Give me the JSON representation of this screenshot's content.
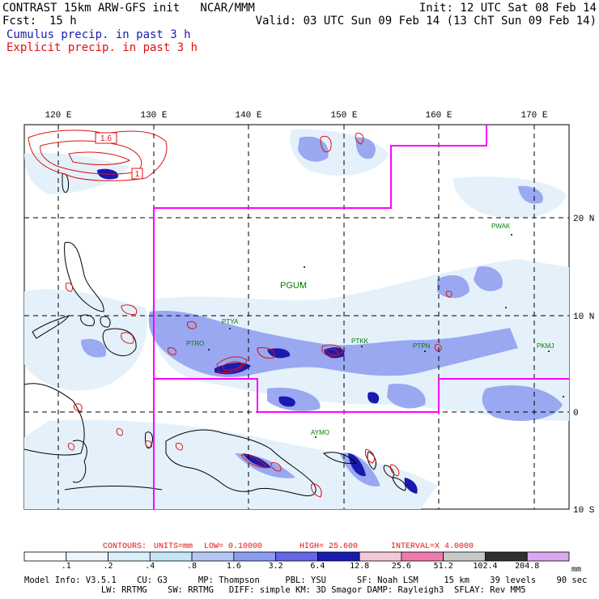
{
  "header": {
    "line1_left": "CONTRAST 15km ARW-GFS init   NCAR/MMM",
    "line1_right": "Init: 12 UTC Sat 08 Feb 14",
    "line2_left_label": "Fcst:",
    "line2_left_value": "15 h",
    "line2_right": "Valid: 03 UTC Sun 09 Feb 14 (13 ChT Sun 09 Feb 14)",
    "cumulus_label": "Cumulus precip. in past 3 h",
    "explicit_label": "Explicit precip. in past 3 h"
  },
  "colors": {
    "cumulus": "#1a1ab0",
    "explicit": "#e01010",
    "magenta_box": "#ff00ff",
    "station": "#008000",
    "contour": "#e01010"
  },
  "map": {
    "lon_labels": [
      "120 E",
      "130 E",
      "140 E",
      "150 E",
      "160 E",
      "170 E"
    ],
    "lat_labels": [
      "20 N",
      "10 N",
      "0",
      "10 S"
    ],
    "stations": [
      {
        "id": "PWAK",
        "name": "PWAK"
      },
      {
        "id": "PGUM",
        "name": "PGUM"
      },
      {
        "id": "PTYA",
        "name": "PTYA"
      },
      {
        "id": "PTRO",
        "name": "PTRO"
      },
      {
        "id": "PTKK",
        "name": "PTKK"
      },
      {
        "id": "PTPN",
        "name": "PTPN"
      },
      {
        "id": "PKMJ",
        "name": "PKMJ"
      },
      {
        "id": "AYMO",
        "name": "AYMO"
      }
    ],
    "contour_labels": [
      "1.6",
      "1"
    ]
  },
  "contours_info": {
    "contours": "CONTOURS:",
    "units": "UNITS=mm",
    "low": "LOW=  0.10000",
    "high": "HIGH=  25.600",
    "interval": "INTERVAL=X  4.0000"
  },
  "colorbar": {
    "unit": "mm",
    "labels": [
      ".1",
      ".2",
      ".4",
      ".8",
      "1.6",
      "3.2",
      "6.4",
      "12.8",
      "25.6",
      "51.2",
      "102.4",
      "204.8"
    ],
    "colors": [
      "#ffffff",
      "#eef6fc",
      "#d9eefa",
      "#c6e6f8",
      "#b5c8f4",
      "#8c9cf0",
      "#6666e8",
      "#1a1ab0",
      "#f4c8d6",
      "#f07ab0",
      "#c8c8c8",
      "#303030",
      "#d8a8f0"
    ]
  },
  "footer": {
    "line1": "Model Info: V3.5.1    CU: G3      MP: Thompson     PBL: YSU      SF: Noah LSM     15 km    39 levels    90 sec",
    "line2": "               LW: RRTMG    SW: RRTMG   DIFF: simple KM: 3D Smagor DAMP: Rayleigh3  SFLAY: Rev MM5"
  }
}
